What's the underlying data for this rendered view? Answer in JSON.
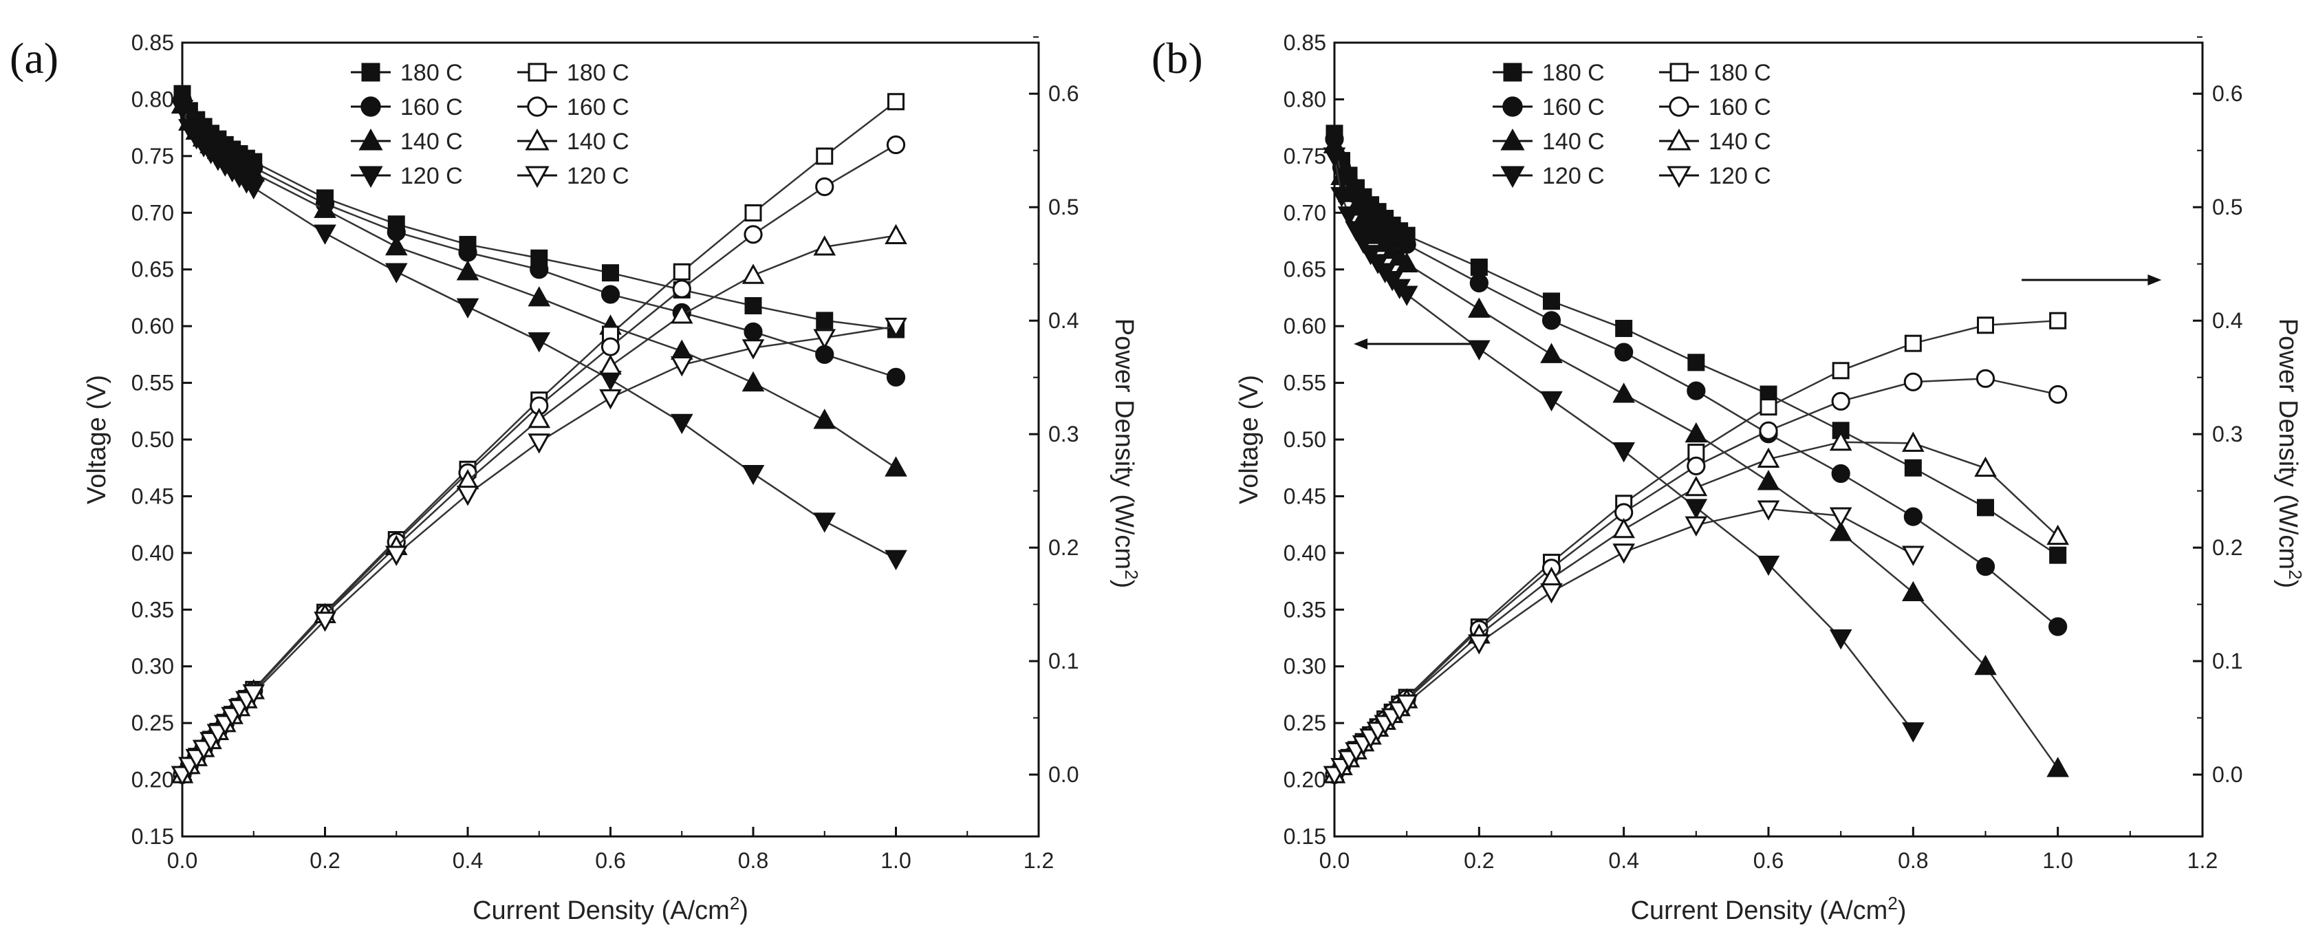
{
  "chart_data": [
    {
      "type": "line",
      "panel_label": "(a)",
      "xlabel": "Current Density (A/cm",
      "xlabel_sup": "2",
      "xlabel_end": ")",
      "ylabel": "Voltage (V)",
      "y2label": "Power Density (W/cm",
      "y2label_sup": "2",
      "y2label_end": ")",
      "xlim": [
        0.0,
        1.2
      ],
      "ylim": [
        0.15,
        0.85
      ],
      "y2lim": [
        -0.0545,
        0.645
      ],
      "xticks": [
        "0.0",
        "0.2",
        "0.4",
        "0.6",
        "0.8",
        "1.0",
        "1.2"
      ],
      "yticks": [
        "0.15",
        "0.20",
        "0.25",
        "0.30",
        "0.35",
        "0.40",
        "0.45",
        "0.50",
        "0.55",
        "0.60",
        "0.65",
        "0.70",
        "0.75",
        "0.80",
        "0.85"
      ],
      "y2ticks": [
        "0.0",
        "0.1",
        "0.2",
        "0.3",
        "0.4",
        "0.5",
        "0.6"
      ],
      "legend": [
        "180 C",
        "180 C",
        "160 C",
        "160 C",
        "140 C",
        "140 C",
        "120 C",
        "120 C"
      ],
      "arrows": false,
      "x": [
        0.0,
        0.01,
        0.02,
        0.03,
        0.04,
        0.05,
        0.06,
        0.07,
        0.08,
        0.09,
        0.1,
        0.2,
        0.3,
        0.4,
        0.5,
        0.6,
        0.7,
        0.8,
        0.9,
        1.0
      ],
      "series": [
        {
          "name": "180 C",
          "kind": "voltage",
          "marker": "square",
          "filled": true,
          "values": [
            0.805,
            0.79,
            0.782,
            0.776,
            0.77,
            0.765,
            0.76,
            0.756,
            0.752,
            0.748,
            0.745,
            0.713,
            0.69,
            0.672,
            0.66,
            0.647,
            0.632,
            0.618,
            0.605,
            0.597
          ]
        },
        {
          "name": "160 C",
          "kind": "voltage",
          "marker": "circle",
          "filled": true,
          "values": [
            0.8,
            0.785,
            0.777,
            0.771,
            0.765,
            0.76,
            0.755,
            0.751,
            0.747,
            0.743,
            0.74,
            0.708,
            0.683,
            0.665,
            0.65,
            0.628,
            0.612,
            0.595,
            0.575,
            0.555
          ]
        },
        {
          "name": "140 C",
          "kind": "voltage",
          "marker": "triangle-up",
          "filled": true,
          "values": [
            0.795,
            0.78,
            0.772,
            0.766,
            0.76,
            0.755,
            0.75,
            0.746,
            0.742,
            0.738,
            0.735,
            0.703,
            0.67,
            0.648,
            0.625,
            0.6,
            0.578,
            0.55,
            0.517,
            0.475
          ]
        },
        {
          "name": "120 C",
          "kind": "voltage",
          "marker": "triangle-down",
          "filled": true,
          "values": [
            0.792,
            0.775,
            0.766,
            0.759,
            0.753,
            0.747,
            0.742,
            0.737,
            0.732,
            0.727,
            0.722,
            0.682,
            0.648,
            0.617,
            0.587,
            0.553,
            0.515,
            0.47,
            0.428,
            0.395
          ]
        },
        {
          "name": "180 C",
          "kind": "power",
          "marker": "square",
          "filled": false,
          "values": [
            0.0,
            0.008,
            0.016,
            0.023,
            0.031,
            0.038,
            0.046,
            0.053,
            0.06,
            0.067,
            0.075,
            0.143,
            0.207,
            0.269,
            0.33,
            0.388,
            0.443,
            0.495,
            0.545,
            0.593
          ]
        },
        {
          "name": "160 C",
          "kind": "power",
          "marker": "circle",
          "filled": false,
          "values": [
            0.0,
            0.008,
            0.016,
            0.023,
            0.031,
            0.038,
            0.045,
            0.053,
            0.06,
            0.067,
            0.074,
            0.142,
            0.205,
            0.266,
            0.325,
            0.377,
            0.428,
            0.476,
            0.518,
            0.555
          ]
        },
        {
          "name": "140 C",
          "kind": "power",
          "marker": "triangle-up",
          "filled": false,
          "values": [
            0.0,
            0.008,
            0.015,
            0.023,
            0.03,
            0.038,
            0.045,
            0.052,
            0.059,
            0.066,
            0.074,
            0.141,
            0.201,
            0.259,
            0.313,
            0.36,
            0.405,
            0.44,
            0.465,
            0.475
          ]
        },
        {
          "name": "120 C",
          "kind": "power",
          "marker": "triangle-down",
          "filled": false,
          "values": [
            0.0,
            0.008,
            0.015,
            0.023,
            0.03,
            0.037,
            0.045,
            0.052,
            0.059,
            0.066,
            0.072,
            0.136,
            0.194,
            0.247,
            0.293,
            0.332,
            0.361,
            0.376,
            0.385,
            0.395
          ]
        }
      ]
    },
    {
      "type": "line",
      "panel_label": "(b)",
      "xlabel": "Current Density (A/cm",
      "xlabel_sup": "2",
      "xlabel_end": ")",
      "ylabel": "Voltage (V)",
      "y2label": "Power Density (W/cm",
      "y2label_sup": "2",
      "y2label_end": ")",
      "xlim": [
        0.0,
        1.2
      ],
      "ylim": [
        0.15,
        0.85
      ],
      "y2lim": [
        -0.0545,
        0.645
      ],
      "xticks": [
        "0.0",
        "0.2",
        "0.4",
        "0.6",
        "0.8",
        "1.0",
        "1.2"
      ],
      "yticks": [
        "0.15",
        "0.20",
        "0.25",
        "0.30",
        "0.35",
        "0.40",
        "0.45",
        "0.50",
        "0.55",
        "0.60",
        "0.65",
        "0.70",
        "0.75",
        "0.80",
        "0.85"
      ],
      "y2ticks": [
        "0.0",
        "0.1",
        "0.2",
        "0.3",
        "0.4",
        "0.5",
        "0.6"
      ],
      "legend": [
        "180 C",
        "180 C",
        "160 C",
        "160 C",
        "140 C",
        "140 C",
        "120 C",
        "120 C"
      ],
      "arrows": true,
      "x": [
        0.0,
        0.01,
        0.02,
        0.03,
        0.04,
        0.05,
        0.06,
        0.07,
        0.08,
        0.09,
        0.1,
        0.2,
        0.3,
        0.4,
        0.5,
        0.6,
        0.7,
        0.8,
        0.9,
        1.0
      ],
      "series_x_max": {
        "120 C": 0.8
      },
      "series": [
        {
          "name": "180 C",
          "kind": "voltage",
          "marker": "square",
          "filled": true,
          "values": [
            0.77,
            0.746,
            0.733,
            0.722,
            0.714,
            0.707,
            0.701,
            0.695,
            0.689,
            0.684,
            0.68,
            0.652,
            0.622,
            0.598,
            0.568,
            0.54,
            0.508,
            0.475,
            0.44,
            0.398
          ]
        },
        {
          "name": "160 C",
          "kind": "voltage",
          "marker": "circle",
          "filled": true,
          "values": [
            0.765,
            0.74,
            0.727,
            0.716,
            0.708,
            0.7,
            0.694,
            0.688,
            0.682,
            0.677,
            0.672,
            0.638,
            0.605,
            0.577,
            0.543,
            0.505,
            0.47,
            0.432,
            0.388,
            0.335
          ]
        },
        {
          "name": "140 C",
          "kind": "voltage",
          "marker": "triangle-up",
          "filled": true,
          "values": [
            0.76,
            0.732,
            0.717,
            0.705,
            0.696,
            0.688,
            0.68,
            0.673,
            0.667,
            0.661,
            0.655,
            0.615,
            0.575,
            0.54,
            0.505,
            0.463,
            0.418,
            0.365,
            0.3,
            0.21
          ]
        },
        {
          "name": "120 C",
          "kind": "voltage",
          "marker": "triangle-down",
          "filled": true,
          "values": [
            0.75,
            0.715,
            0.698,
            0.685,
            0.674,
            0.664,
            0.656,
            0.648,
            0.641,
            0.634,
            0.628,
            0.58,
            0.535,
            0.49,
            0.44,
            0.39,
            0.325,
            0.243,
            null,
            null
          ]
        },
        {
          "name": "180 C",
          "kind": "power",
          "marker": "square",
          "filled": false,
          "values": [
            0.0,
            0.007,
            0.015,
            0.022,
            0.029,
            0.035,
            0.042,
            0.049,
            0.055,
            0.062,
            0.068,
            0.13,
            0.187,
            0.239,
            0.284,
            0.324,
            0.356,
            0.38,
            0.396,
            0.4
          ]
        },
        {
          "name": "160 C",
          "kind": "power",
          "marker": "circle",
          "filled": false,
          "values": [
            0.0,
            0.007,
            0.015,
            0.021,
            0.028,
            0.035,
            0.042,
            0.048,
            0.055,
            0.061,
            0.067,
            0.128,
            0.182,
            0.231,
            0.272,
            0.303,
            0.329,
            0.346,
            0.349,
            0.335
          ]
        },
        {
          "name": "140 C",
          "kind": "power",
          "marker": "triangle-up",
          "filled": false,
          "values": [
            0.0,
            0.007,
            0.014,
            0.021,
            0.028,
            0.034,
            0.041,
            0.047,
            0.053,
            0.059,
            0.066,
            0.123,
            0.173,
            0.216,
            0.253,
            0.278,
            0.293,
            0.292,
            0.27,
            0.21
          ]
        },
        {
          "name": "120 C",
          "kind": "power",
          "marker": "triangle-down",
          "filled": false,
          "values": [
            0.0,
            0.007,
            0.014,
            0.021,
            0.027,
            0.033,
            0.039,
            0.045,
            0.051,
            0.057,
            0.063,
            0.116,
            0.161,
            0.196,
            0.22,
            0.234,
            0.228,
            0.194,
            null,
            null
          ]
        }
      ]
    }
  ]
}
